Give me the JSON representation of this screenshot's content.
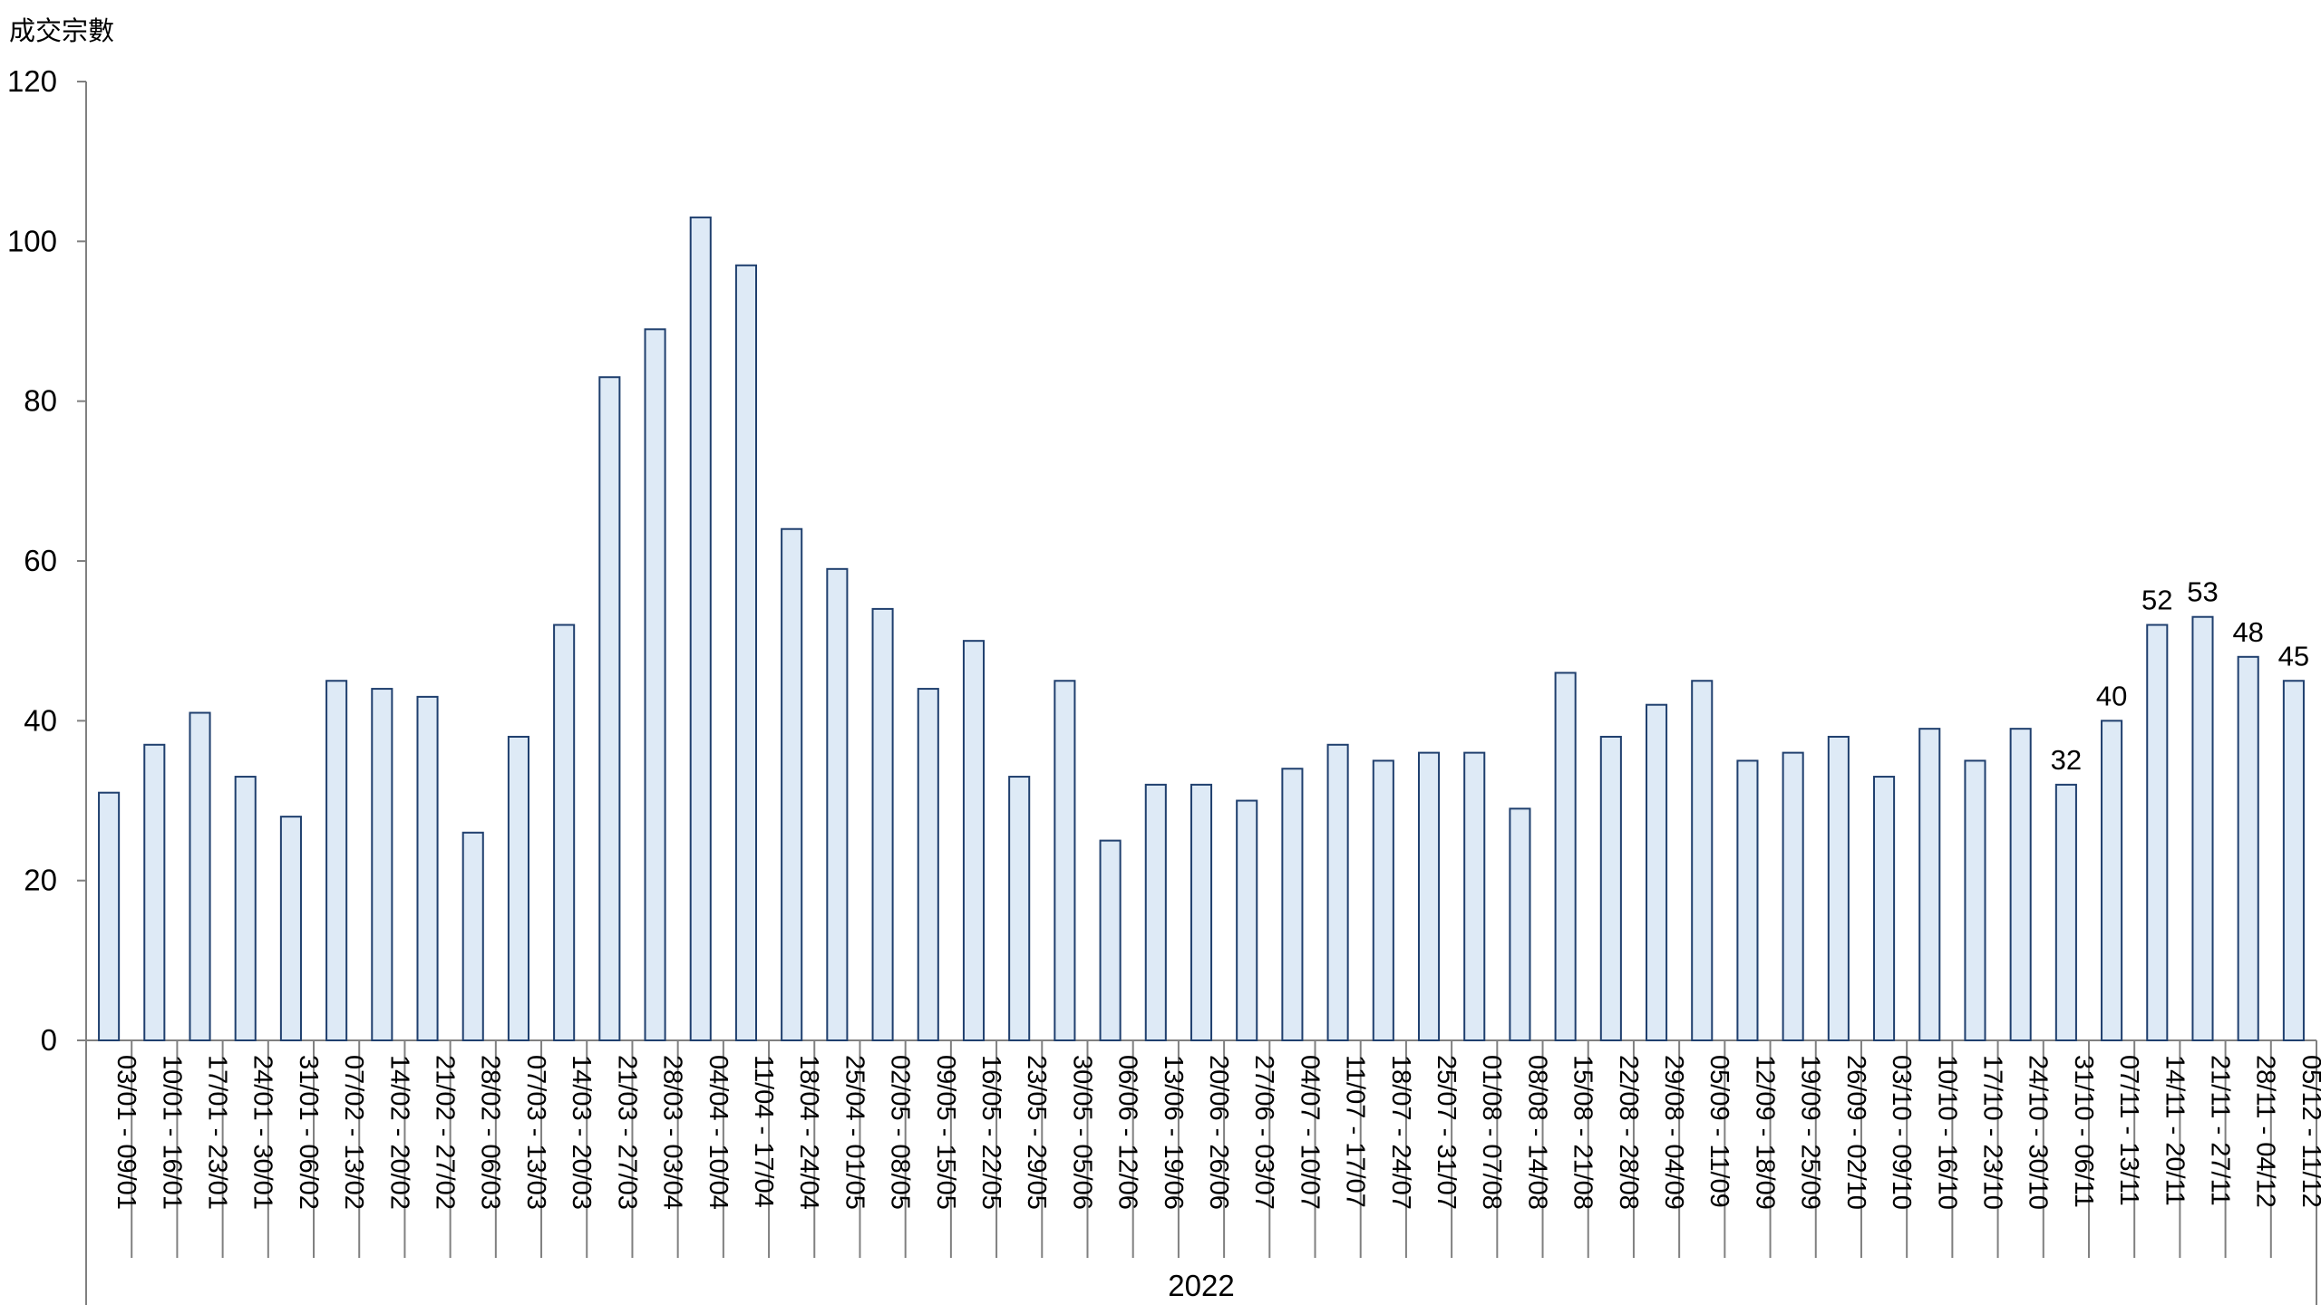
{
  "chart_data": {
    "type": "bar",
    "ylabel": "成交宗數",
    "xlabel": "",
    "group_label": "2022",
    "ylim": [
      0,
      120
    ],
    "yticks": [
      0,
      20,
      40,
      60,
      80,
      100,
      120
    ],
    "grid": false,
    "bar_fill": "#deeaf6",
    "bar_stroke": "#1f3f6e",
    "categories": [
      "03/01 - 09/01",
      "10/01 - 16/01",
      "17/01 - 23/01",
      "24/01 - 30/01",
      "31/01 - 06/02",
      "07/02 - 13/02",
      "14/02 - 20/02",
      "21/02 - 27/02",
      "28/02 - 06/03",
      "07/03 - 13/03",
      "14/03 - 20/03",
      "21/03 - 27/03",
      "28/03 - 03/04",
      "04/04 - 10/04",
      "11/04 - 17/04",
      "18/04 - 24/04",
      "25/04 - 01/05",
      "02/05 - 08/05",
      "09/05 - 15/05",
      "16/05 - 22/05",
      "23/05 - 29/05",
      "30/05 - 05/06",
      "06/06 - 12/06",
      "13/06 - 19/06",
      "20/06 - 26/06",
      "27/06 - 03/07",
      "04/07 - 10/07",
      "11/07 - 17/07",
      "18/07 - 24/07",
      "25/07 - 31/07",
      "01/08 - 07/08",
      "08/08 - 14/08",
      "15/08 - 21/08",
      "22/08 - 28/08",
      "29/08 - 04/09",
      "05/09 - 11/09",
      "12/09 - 18/09",
      "19/09 - 25/09",
      "26/09 - 02/10",
      "03/10 - 09/10",
      "10/10 - 16/10",
      "17/10 - 23/10",
      "24/10 - 30/10",
      "31/10 - 06/11",
      "07/11 - 13/11",
      "14/11 - 20/11",
      "21/11 - 27/11",
      "28/11 - 04/12",
      "05/12 - 11/12"
    ],
    "values": [
      31,
      37,
      41,
      33,
      28,
      45,
      44,
      43,
      26,
      38,
      52,
      83,
      89,
      103,
      97,
      64,
      59,
      54,
      44,
      50,
      33,
      45,
      25,
      32,
      32,
      30,
      34,
      37,
      35,
      36,
      36,
      29,
      46,
      38,
      42,
      45,
      35,
      36,
      38,
      33,
      39,
      35,
      39,
      32,
      40,
      52,
      53,
      48,
      45
    ],
    "data_labels": [
      null,
      null,
      null,
      null,
      null,
      null,
      null,
      null,
      null,
      null,
      null,
      null,
      null,
      null,
      null,
      null,
      null,
      null,
      null,
      null,
      null,
      null,
      null,
      null,
      null,
      null,
      null,
      null,
      null,
      null,
      null,
      null,
      null,
      null,
      null,
      null,
      null,
      null,
      null,
      null,
      null,
      null,
      null,
      "32",
      "40",
      "52",
      "53",
      "48",
      "45"
    ]
  }
}
